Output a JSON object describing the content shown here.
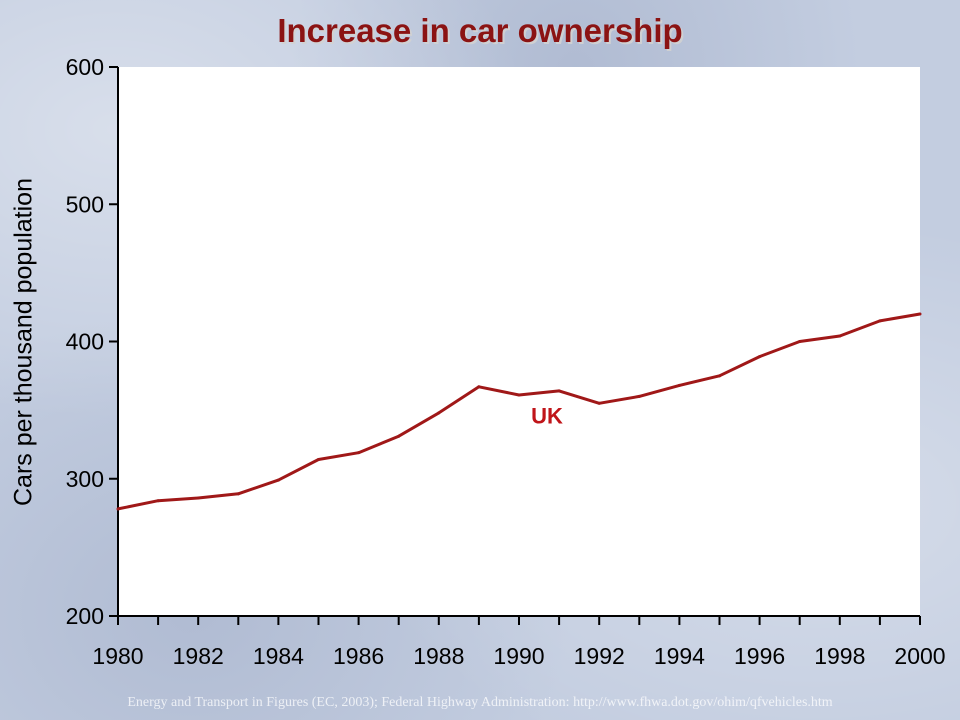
{
  "footnote": "Energy and Transport in Figures (EC, 2003); Federal Highway Administration: http://www.fhwa.dot.gov/ohim/qfvehicles.htm",
  "colors": {
    "title": "#8b1313",
    "series": "#a01818",
    "plot_background": "#ffffff"
  },
  "chart_data": {
    "type": "line",
    "title": "Increase in car ownership",
    "xlabel": "",
    "ylabel": "Cars per thousand population",
    "xlim": [
      1980,
      2000
    ],
    "ylim": [
      200,
      600
    ],
    "x_ticks": [
      1980,
      1982,
      1984,
      1986,
      1988,
      1990,
      1992,
      1994,
      1996,
      1998,
      2000
    ],
    "y_ticks": [
      200,
      300,
      400,
      500,
      600
    ],
    "grid": false,
    "legend": "none",
    "series": [
      {
        "name": "UK",
        "x": [
          1980,
          1981,
          1982,
          1983,
          1984,
          1985,
          1986,
          1987,
          1988,
          1989,
          1990,
          1991,
          1992,
          1993,
          1994,
          1995,
          1996,
          1997,
          1998,
          1999,
          2000
        ],
        "y": [
          278,
          284,
          286,
          289,
          299,
          314,
          319,
          331,
          348,
          367,
          361,
          364,
          355,
          360,
          368,
          375,
          389,
          400,
          404,
          415,
          420
        ]
      }
    ]
  }
}
